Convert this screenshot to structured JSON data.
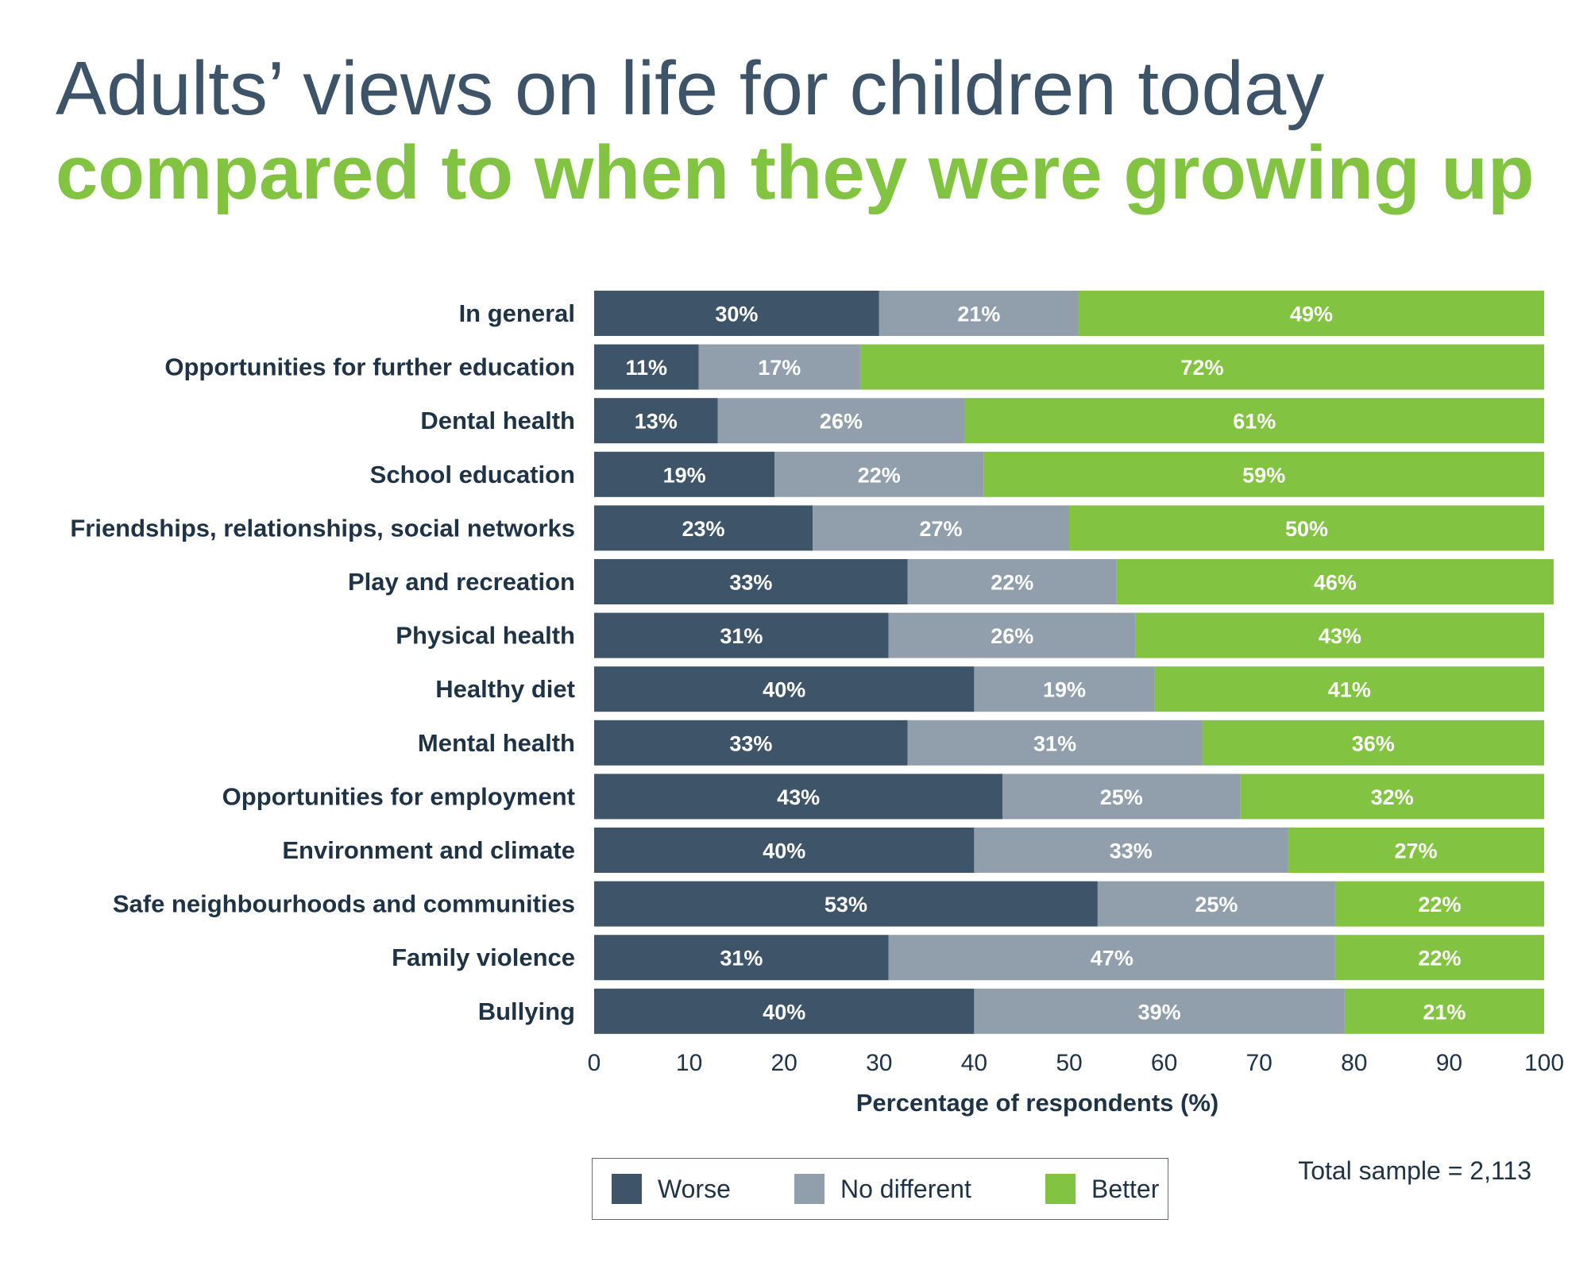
{
  "title": {
    "line1": "Adults’ views on life for children today",
    "line2": "compared to when they were growing up"
  },
  "colors": {
    "worse": "#3e5468",
    "no_different": "#909fab",
    "better": "#82c341",
    "title_dark": "#3d5367",
    "title_green": "#82c341",
    "text": "#1f3347"
  },
  "chart_data": {
    "type": "bar",
    "orientation": "horizontal",
    "stacked": true,
    "categories": [
      "In general",
      "Opportunities for further education",
      "Dental health",
      "School education",
      "Friendships, relationships, social networks",
      "Play and recreation",
      "Physical health",
      "Healthy diet",
      "Mental health",
      "Opportunities for employment",
      "Environment and climate",
      "Safe neighbourhoods and communities",
      "Family violence",
      "Bullying"
    ],
    "series": [
      {
        "name": "Worse",
        "color": "#3e5468",
        "values": [
          30,
          11,
          13,
          19,
          23,
          33,
          31,
          40,
          33,
          43,
          40,
          53,
          31,
          40
        ]
      },
      {
        "name": "No different",
        "color": "#909fab",
        "values": [
          21,
          17,
          26,
          22,
          27,
          22,
          26,
          19,
          31,
          25,
          33,
          25,
          47,
          39
        ]
      },
      {
        "name": "Better",
        "color": "#82c341",
        "values": [
          49,
          72,
          61,
          59,
          50,
          46,
          43,
          41,
          36,
          32,
          27,
          22,
          22,
          21
        ]
      }
    ],
    "value_suffix": "%",
    "xlabel": "Percentage of respondents (%)",
    "ylabel": "",
    "xlim": [
      0,
      100
    ],
    "xticks": [
      0,
      10,
      20,
      30,
      40,
      50,
      60,
      70,
      80,
      90,
      100
    ],
    "grid": false,
    "legend_placement": "bottom-center"
  },
  "legend": {
    "items": [
      {
        "label": "Worse",
        "color": "#3e5468"
      },
      {
        "label": "No different",
        "color": "#909fab"
      },
      {
        "label": "Better",
        "color": "#82c341"
      }
    ]
  },
  "sample_note": "Total sample = 2,113"
}
